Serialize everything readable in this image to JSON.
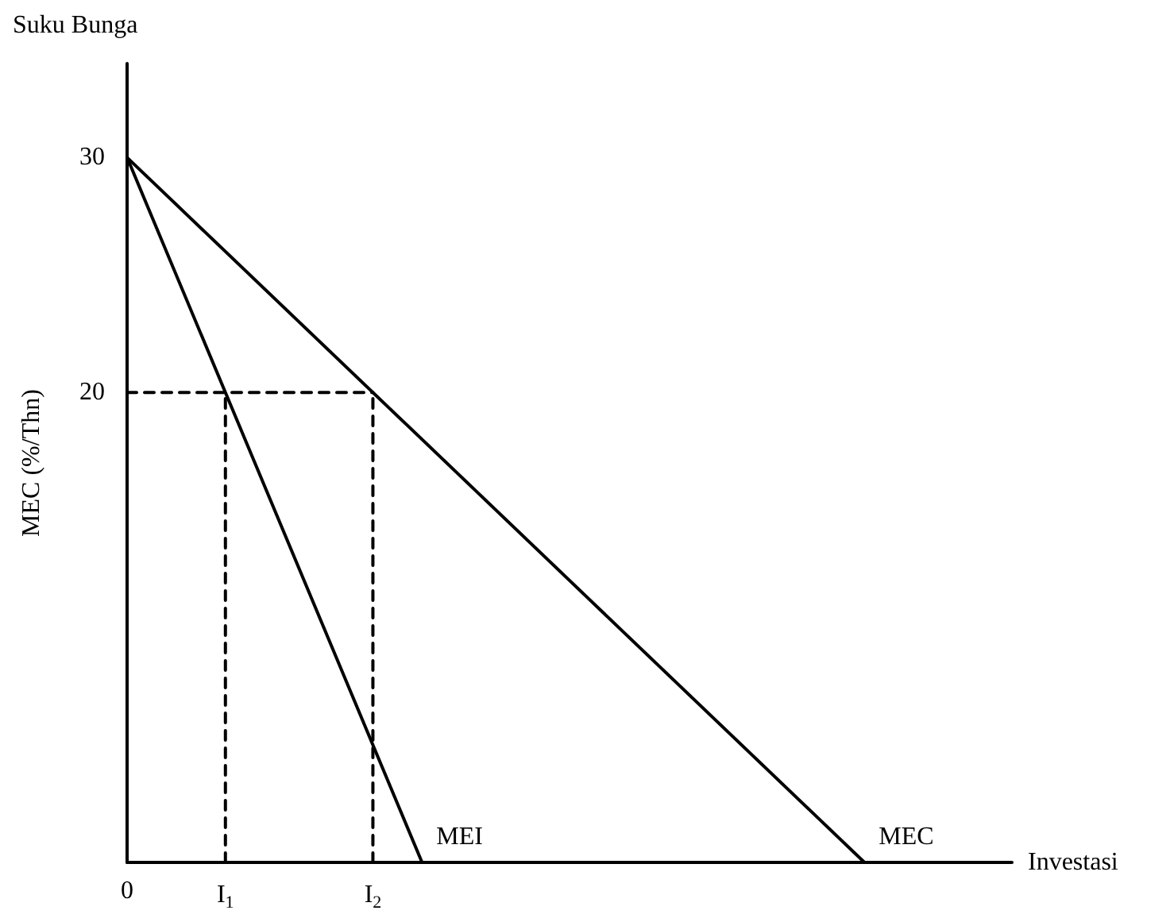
{
  "chart_data": {
    "type": "line",
    "xlabel": "Investasi",
    "ylabel": "MEC (%/Thn)",
    "annotations": [
      "Suku Bunga"
    ],
    "categories": [
      "0",
      null,
      "I$_{1}$",
      null,
      null,
      "I$_{2}$",
      null,
      null,
      null,
      null,
      null,
      null,
      null,
      null,
      null,
      null,
      null,
      null,
      null
    ],
    "ylim": [
      0,
      34
    ],
    "yticks": [
      20,
      30
    ],
    "grid": false,
    "legend": false,
    "marker": "none",
    "series": [
      {
        "name": "MEC",
        "color": "#000000",
        "values": [
          30,
          null,
          null,
          null,
          null,
          null,
          null,
          null,
          null,
          null,
          null,
          null,
          null,
          null,
          null,
          0,
          null,
          null,
          null
        ],
        "line_style": "solid"
      },
      {
        "name": "MEI",
        "color": "#000000",
        "values": [
          30,
          null,
          null,
          null,
          null,
          null,
          0,
          null,
          null,
          null,
          null,
          null,
          null,
          null,
          null,
          null,
          null,
          null,
          null
        ],
        "line_style": "solid"
      },
      {
        "color": "#000000",
        "x": [
          "0",
          "I$_{2}$"
        ],
        "values": [
          20,
          20
        ],
        "line_style": "dashed"
      },
      {
        "color": "#000000",
        "x": [
          "I$_{1}$",
          "I$_{1}$"
        ],
        "values": [
          0,
          20
        ],
        "line_style": "dashed"
      },
      {
        "color": "#000000",
        "x": [
          "I$_{2}$",
          "I$_{2}$"
        ],
        "values": [
          0,
          20
        ],
        "line_style": "dashed"
      }
    ]
  }
}
